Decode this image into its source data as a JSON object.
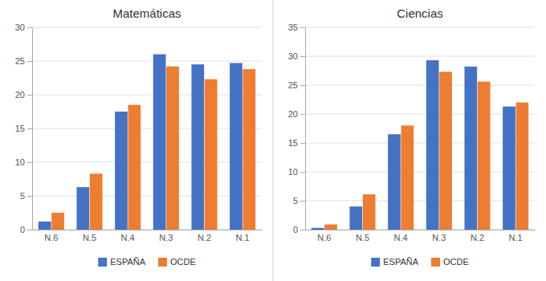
{
  "chart_data": [
    {
      "type": "bar",
      "title": "Matemáticas",
      "categories": [
        "N.6",
        "N.5",
        "N.4",
        "N.3",
        "N.2",
        "N.1"
      ],
      "series": [
        {
          "name": "ESPAÑA",
          "color": "#4472C4",
          "values": [
            1.2,
            6.3,
            17.5,
            26.0,
            24.5,
            24.7
          ]
        },
        {
          "name": "OCDE",
          "color": "#ED7D31",
          "values": [
            2.5,
            8.3,
            18.5,
            24.2,
            22.3,
            23.8
          ]
        }
      ],
      "ylim": [
        0,
        30
      ],
      "yticks": [
        0,
        5,
        10,
        15,
        20,
        25,
        30
      ],
      "grid": true,
      "legend": "bottom"
    },
    {
      "type": "bar",
      "title": "Ciencias",
      "categories": [
        "N.6",
        "N.5",
        "N.4",
        "N.3",
        "N.2",
        "N.1"
      ],
      "series": [
        {
          "name": "ESPAÑA",
          "color": "#4472C4",
          "values": [
            0.3,
            4.0,
            16.5,
            29.3,
            28.2,
            21.3
          ]
        },
        {
          "name": "OCDE",
          "color": "#ED7D31",
          "values": [
            0.9,
            6.1,
            18.0,
            27.3,
            25.6,
            22.0
          ]
        }
      ],
      "ylim": [
        0,
        35
      ],
      "yticks": [
        0,
        5,
        10,
        15,
        20,
        25,
        30,
        35
      ],
      "grid": true,
      "legend": "bottom"
    }
  ]
}
